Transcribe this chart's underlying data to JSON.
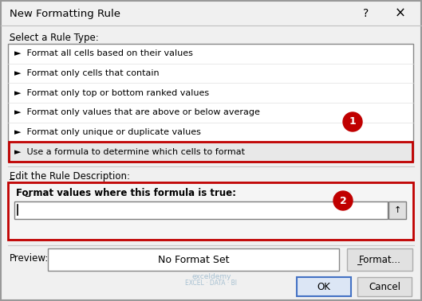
{
  "title": "New Formatting Rule",
  "bg_color": "#f0f0f0",
  "white": "#ffffff",
  "red_border": "#c00000",
  "dark_red_circle": "#c00000",
  "section1_label": "Select a Rule Type:",
  "rule_items": [
    "►  Format all cells based on their values",
    "►  Format only cells that contain",
    "►  Format only top or bottom ranked values",
    "►  Format only values that are above or below average",
    "►  Format only unique or duplicate values",
    "►  Use a formula to determine which cells to format"
  ],
  "selected_item_index": 5,
  "selected_item_bg": "#e8e8e8",
  "section2_label": "Edit the Rule Description:",
  "formula_label": "Format values where this formula is true:",
  "preview_label": "Preview:",
  "no_format_text": "No Format Set",
  "format_btn": "Format...",
  "ok_btn": "OK",
  "cancel_btn": "Cancel",
  "help_symbol": "?",
  "close_symbol": "×",
  "circle1_label": "1",
  "circle2_label": "2",
  "watermark_line1": "exceldemy",
  "watermark_line2": "EXCEL · DATA · BI",
  "ok_border_color": "#4472c4",
  "list_border": "#888888",
  "gray_btn_bg": "#e1e1e1",
  "gray_btn_border": "#adadad",
  "input_border": "#7f7f7f",
  "sep_color": "#c8c8c8"
}
